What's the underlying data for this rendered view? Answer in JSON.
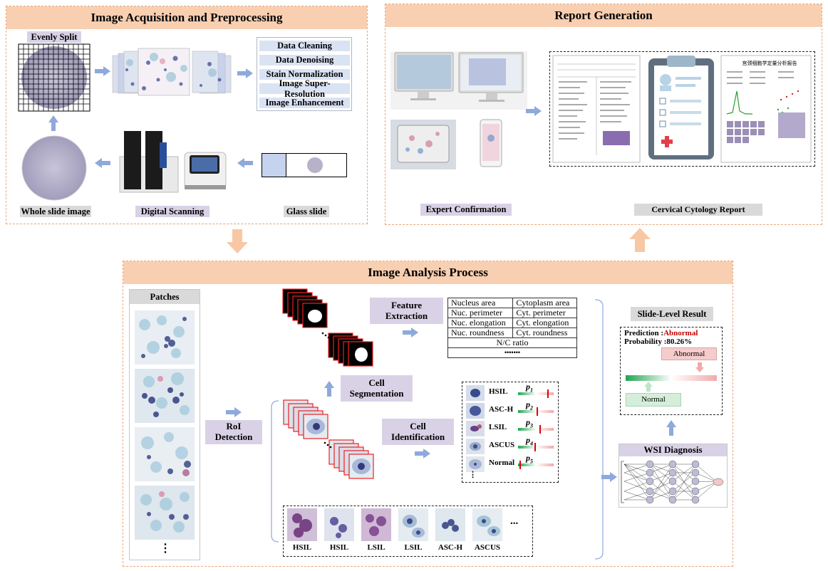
{
  "acquisition": {
    "title": "Image Acquisition and Preprocessing",
    "evenly_split": "Evenly Split",
    "preprocessing_steps": [
      "Data Cleaning",
      "Data Denoising",
      "Stain Normalization",
      "Image Super-Resolution",
      "Image Enhancement"
    ],
    "whole_slide_label": "Whole slide image",
    "digital_scanning_label": "Digital Scanning",
    "glass_slide_label": "Glass slide"
  },
  "report": {
    "title": "Report Generation",
    "expert_confirmation": "Expert Confirmation",
    "cervical_report": "Cervical Cytology Report",
    "report_doc_title": "宫颈细胞学定量分析报告"
  },
  "analysis": {
    "title": "Image Analysis Process",
    "patches_label": "Patches",
    "ellipsis": "⋮",
    "roi_label": "RoI Detection",
    "cell_segmentation": "Cell Segmentation",
    "feature_extraction": "Feature Extraction",
    "cell_identification": "Cell Identification",
    "features": [
      [
        "Nucleus area",
        "Cytoplasm area"
      ],
      [
        "Nuc. perimeter",
        "Cyt. perimeter"
      ],
      [
        "Nuc. elongation",
        "Cyt. elongation"
      ],
      [
        "Nuc. roundness",
        "Cyt. roundness"
      ]
    ],
    "nc_ratio": "N/C ratio",
    "feature_more": "•••••••",
    "classes": [
      {
        "name": "HSIL",
        "p": "p",
        "sub": "1",
        "level": 0.85
      },
      {
        "name": "ASC-H",
        "p": "p",
        "sub": "2",
        "level": 0.55
      },
      {
        "name": "LSIL",
        "p": "p",
        "sub": "3",
        "level": 0.62
      },
      {
        "name": "ASCUS",
        "p": "p",
        "sub": "4",
        "level": 0.48
      },
      {
        "name": "Normal",
        "p": "p",
        "sub": "5",
        "level": 0.05
      }
    ],
    "class_ellipsis": "⋮",
    "cell_gallery": [
      "HSIL",
      "HSIL",
      "LSIL",
      "LSIL",
      "ASC-H",
      "ASCUS"
    ],
    "gallery_more": "...",
    "slide_level_result": "Slide-Level Result",
    "prediction_label": "Prediction :",
    "prediction_value": "Abnormal",
    "probability_label": "Probability :",
    "probability_value": "80.26%",
    "abnormal_box": "Abnormal",
    "normal_box": "Normal",
    "wsi_diagnosis": "WSI Diagnosis"
  },
  "colors": {
    "header_fill": "#f8cfb1",
    "panel_border": "#e9a679",
    "arrow": "#8ea9db",
    "orange_arrow": "#f8c8a4",
    "step_fill": "#dae3f3",
    "abnormal_text": "#c00000"
  }
}
